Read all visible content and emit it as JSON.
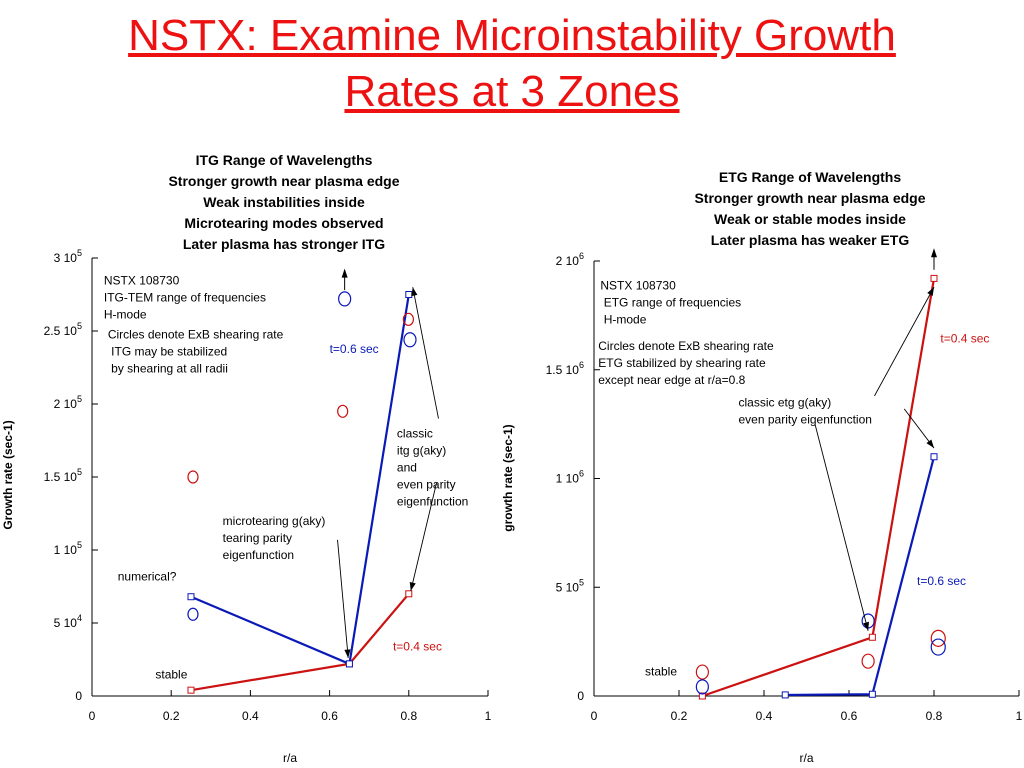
{
  "slide": {
    "title_line1": "NSTX: Examine Microinstability Growth",
    "title_line2": "Rates at 3 Zones"
  },
  "colors": {
    "title": "#ee1111",
    "series_red": "#cc1111",
    "series_blue": "#0a1ab8"
  },
  "chart_data": [
    {
      "type": "line",
      "caption": [
        "ITG Range of Wavelengths",
        "Stronger growth near plasma edge",
        "Weak instabilities inside",
        "Microtearing modes observed",
        "Later plasma has stronger ITG"
      ],
      "xlabel": "r/a",
      "ylabel": "Growth rate (sec-1)",
      "xlim": [
        0,
        1
      ],
      "ylim": [
        0,
        300000
      ],
      "xticks": [
        0,
        0.2,
        0.4,
        0.6,
        0.8,
        1
      ],
      "xtick_labels": [
        "0",
        "0.2",
        "0.4",
        "0.6",
        "0.8",
        "1"
      ],
      "yticks": [
        {
          "v": 0,
          "m": "0",
          "e": ""
        },
        {
          "v": 50000,
          "m": "5 10",
          "e": "4"
        },
        {
          "v": 100000,
          "m": "1 10",
          "e": "5"
        },
        {
          "v": 150000,
          "m": "1.5 10",
          "e": "5"
        },
        {
          "v": 200000,
          "m": "2 10",
          "e": "5"
        },
        {
          "v": 250000,
          "m": "2.5 10",
          "e": "5"
        },
        {
          "v": 300000,
          "m": "3 10",
          "e": "5"
        }
      ],
      "series": [
        {
          "color": "red",
          "x": [
            0.25,
            0.65,
            0.8
          ],
          "y": [
            4000,
            22000,
            70000
          ]
        },
        {
          "color": "blue",
          "x": [
            0.25,
            0.65,
            0.8
          ],
          "y": [
            68000,
            22000,
            275000
          ]
        }
      ],
      "circles": [
        {
          "color": "red",
          "x": 0.255,
          "y": 150000,
          "r": 4
        },
        {
          "color": "red",
          "x": 0.633,
          "y": 195000,
          "r": 4
        },
        {
          "color": "red",
          "x": 0.799,
          "y": 258000,
          "r": 4
        },
        {
          "color": "blue",
          "x": 0.255,
          "y": 56000,
          "r": 4
        },
        {
          "color": "blue",
          "x": 0.638,
          "y": 272000,
          "r": 5
        },
        {
          "color": "blue",
          "x": 0.803,
          "y": 244000,
          "r": 5
        }
      ],
      "annotations": [
        {
          "lines": [
            "NSTX 108730",
            "ITG-TEM range of frequencies",
            "H-mode"
          ],
          "color": "#000",
          "x": 0.03,
          "y": 282000,
          "anchor": "start"
        },
        {
          "lines": [
            "Circles denote ExB shearing rate",
            " ITG  may be stabilized",
            "  by shearing at all radii"
          ],
          "color": "#000",
          "x": 0.04,
          "y": 245000,
          "anchor": "start"
        },
        {
          "lines": [
            "t=0.6 sec"
          ],
          "color": "blue",
          "x": 0.6,
          "y": 235000,
          "anchor": "start"
        },
        {
          "lines": [
            "classic",
            "itg g(aky)",
            "and",
            "even parity",
            "eigenfunction"
          ],
          "color": "#000",
          "x": 0.77,
          "y": 177000,
          "anchor": "start"
        },
        {
          "lines": [
            "microtearing g(aky)",
            "tearing parity",
            "eigenfunction"
          ],
          "color": "#000",
          "x": 0.33,
          "y": 117000,
          "anchor": "start"
        },
        {
          "lines": [
            "numerical?"
          ],
          "color": "#000",
          "x": 0.065,
          "y": 79000,
          "anchor": "start"
        },
        {
          "lines": [
            "t=0.4 sec"
          ],
          "color": "red",
          "x": 0.76,
          "y": 31000,
          "anchor": "start"
        },
        {
          "lines": [
            "stable"
          ],
          "color": "#000",
          "x": 0.16,
          "y": 12000,
          "anchor": "start"
        }
      ],
      "arrows": [
        {
          "x1": 0.62,
          "y1": 107000,
          "x2": 0.647,
          "y2": 26000
        },
        {
          "x1": 0.875,
          "y1": 190000,
          "x2": 0.81,
          "y2": 280000
        },
        {
          "x1": 0.87,
          "y1": 146000,
          "x2": 0.805,
          "y2": 72000
        }
      ],
      "up_arrows": [
        {
          "x": 0.638,
          "y1": 278000,
          "y2": 290000
        }
      ]
    },
    {
      "type": "line",
      "caption": [
        "ETG Range of Wavelengths",
        "Stronger growth near plasma edge",
        "Weak or stable modes inside",
        "Later plasma has weaker ETG"
      ],
      "xlabel": "r/a",
      "ylabel": "growth rate (sec-1)",
      "xlim": [
        0,
        1
      ],
      "ylim": [
        0,
        2000000
      ],
      "xticks": [
        0,
        0.2,
        0.4,
        0.6,
        0.8,
        1
      ],
      "xtick_labels": [
        "0",
        "0.2",
        "0.4",
        "0.6",
        "0.8",
        "1"
      ],
      "yticks": [
        {
          "v": 0,
          "m": "0",
          "e": ""
        },
        {
          "v": 500000,
          "m": "5 10",
          "e": "5"
        },
        {
          "v": 1000000,
          "m": "1 10",
          "e": "6"
        },
        {
          "v": 1500000,
          "m": "1.5 10",
          "e": "6"
        },
        {
          "v": 2000000,
          "m": "2 10",
          "e": "6"
        }
      ],
      "series": [
        {
          "color": "red",
          "x": [
            0.255,
            0.655,
            0.8
          ],
          "y": [
            0,
            270000,
            1920000
          ]
        },
        {
          "color": "blue",
          "x": [
            0.45,
            0.655,
            0.8
          ],
          "y": [
            5000,
            8000,
            1100000
          ]
        }
      ],
      "circles": [
        {
          "color": "red",
          "x": 0.255,
          "y": 110000,
          "r": 5
        },
        {
          "color": "red",
          "x": 0.645,
          "y": 160000,
          "r": 5
        },
        {
          "color": "red",
          "x": 0.81,
          "y": 265000,
          "r": 6
        },
        {
          "color": "blue",
          "x": 0.255,
          "y": 42000,
          "r": 5
        },
        {
          "color": "blue",
          "x": 0.645,
          "y": 345000,
          "r": 5
        },
        {
          "color": "blue",
          "x": 0.81,
          "y": 225000,
          "r": 6
        }
      ],
      "annotations": [
        {
          "lines": [
            "NSTX 108730",
            " ETG range of frequencies",
            " H-mode"
          ],
          "color": "#000",
          "x": 0.015,
          "y": 1870000,
          "anchor": "start"
        },
        {
          "lines": [
            "Circles denote ExB shearing rate",
            "ETG stabilized by shearing rate",
            "except near edge at r/a=0.8"
          ],
          "color": "#000",
          "x": 0.01,
          "y": 1590000,
          "anchor": "start"
        },
        {
          "lines": [
            "t=0.4 sec"
          ],
          "color": "red",
          "x": 0.815,
          "y": 1625000,
          "anchor": "start"
        },
        {
          "lines": [
            "classic etg g(aky)",
            "even parity eigenfunction"
          ],
          "color": "#000",
          "x": 0.34,
          "y": 1330000,
          "anchor": "start"
        },
        {
          "lines": [
            "t=0.6 sec"
          ],
          "color": "blue",
          "x": 0.76,
          "y": 510000,
          "anchor": "start"
        },
        {
          "lines": [
            "stable"
          ],
          "color": "#000",
          "x": 0.12,
          "y": 95000,
          "anchor": "start"
        }
      ],
      "arrows": [
        {
          "x1": 0.52,
          "y1": 1250000,
          "x2": 0.645,
          "y2": 300000
        },
        {
          "x1": 0.66,
          "y1": 1380000,
          "x2": 0.8,
          "y2": 1880000
        },
        {
          "x1": 0.73,
          "y1": 1320000,
          "x2": 0.8,
          "y2": 1140000
        }
      ],
      "up_arrows": [
        {
          "x": 0.8,
          "y1": 1960000,
          "y2": 2040000
        }
      ]
    }
  ]
}
